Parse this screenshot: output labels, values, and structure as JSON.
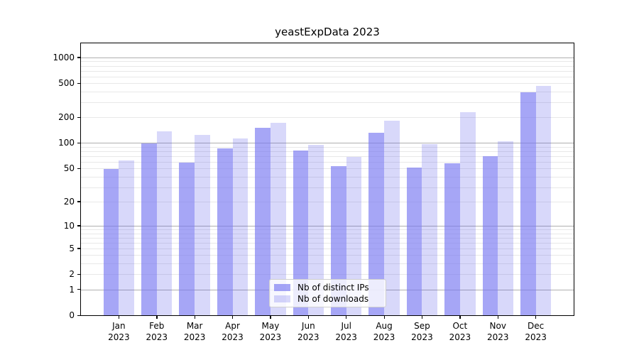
{
  "figure_title": "yeastExpData 2023",
  "chart_data": {
    "type": "bar",
    "title": "yeastExpData 2023",
    "x_axis": {
      "months": [
        "Jan",
        "Feb",
        "Mar",
        "Apr",
        "May",
        "Jun",
        "Jul",
        "Aug",
        "Sep",
        "Oct",
        "Nov",
        "Dec"
      ],
      "year": "2023"
    },
    "categories": [
      "Jan 2023",
      "Feb 2023",
      "Mar 2023",
      "Apr 2023",
      "May 2023",
      "Jun 2023",
      "Jul 2023",
      "Aug 2023",
      "Sep 2023",
      "Oct 2023",
      "Nov 2023",
      "Dec 2023"
    ],
    "series": [
      {
        "name": "Nb of distinct IPs",
        "color": "rgba(118,118,241,0.65)",
        "color_hex": "#a6a6f6",
        "values": [
          49,
          98,
          59,
          86,
          150,
          82,
          53,
          131,
          51,
          58,
          70,
          390
        ]
      },
      {
        "name": "Nb of downloads",
        "color": "rgba(78,78,232,0.22)",
        "color_hex": "#d8d8fa",
        "values": [
          62,
          138,
          124,
          113,
          174,
          96,
          69,
          182,
          97,
          232,
          104,
          470
        ]
      }
    ],
    "y_axis": {
      "scale": "log1p",
      "tick_values": [
        0,
        1,
        2,
        5,
        10,
        20,
        50,
        100,
        200,
        500,
        1000
      ],
      "major_grid_values": [
        1,
        10,
        100,
        1000
      ],
      "minor_grid_bases": [
        1,
        10,
        100
      ],
      "ylim": [
        0,
        1460
      ]
    },
    "legend": {
      "position": "lower center"
    },
    "grid": true,
    "colors": {
      "major_grid": "#b0b0b0",
      "minor_grid": "#e8e8e8",
      "spine": "#000000",
      "background": "#ffffff"
    }
  }
}
